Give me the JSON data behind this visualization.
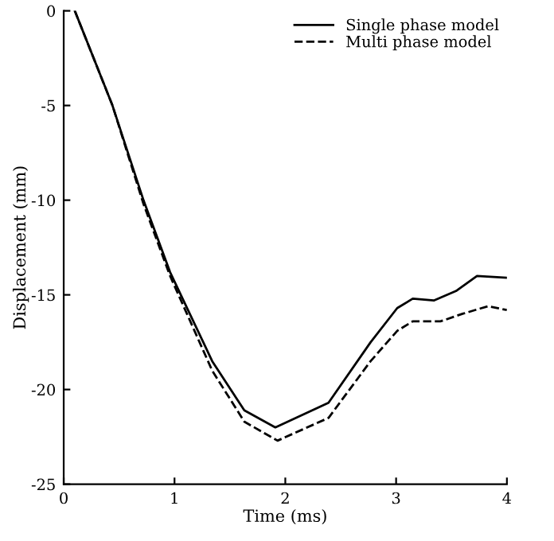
{
  "chart_data": {
    "type": "line",
    "xlabel": "Time (ms)",
    "ylabel": "Displacement (mm)",
    "x": [
      0.1,
      0.44,
      0.72,
      0.96,
      1.34,
      1.63,
      1.91,
      2.39,
      2.77,
      3.01,
      3.15,
      3.34,
      3.54,
      3.73,
      4.0
    ],
    "series": [
      {
        "name": "Single phase model",
        "color": "#000000",
        "line_style": "solid",
        "values": [
          0,
          -5,
          -10,
          -13.8,
          -18.5,
          -21.1,
          -22.0,
          -20.7,
          -17.5,
          -15.7,
          -15.2,
          -15.3,
          -14.8,
          -14.0,
          -14.1
        ]
      },
      {
        "name": "Multi phase model",
        "color": "#000000",
        "line_style": "dashed",
        "x": [
          0.1,
          0.44,
          0.72,
          0.96,
          1.34,
          1.63,
          1.93,
          2.39,
          2.77,
          3.01,
          3.15,
          3.4,
          3.6,
          3.83,
          4.0
        ],
        "values": [
          0,
          -5,
          -10.2,
          -14.0,
          -19.0,
          -21.7,
          -22.7,
          -21.5,
          -18.5,
          -16.9,
          -16.4,
          -16.4,
          -16.0,
          -15.6,
          -15.8
        ]
      }
    ],
    "xlim": [
      0,
      4
    ],
    "xticks": [
      0,
      1,
      2,
      3,
      4
    ],
    "ylim": [
      -25,
      0
    ],
    "yticks": [
      -25,
      -20,
      -15,
      -10,
      -5,
      0
    ],
    "legend": "top right",
    "grid": false
  }
}
